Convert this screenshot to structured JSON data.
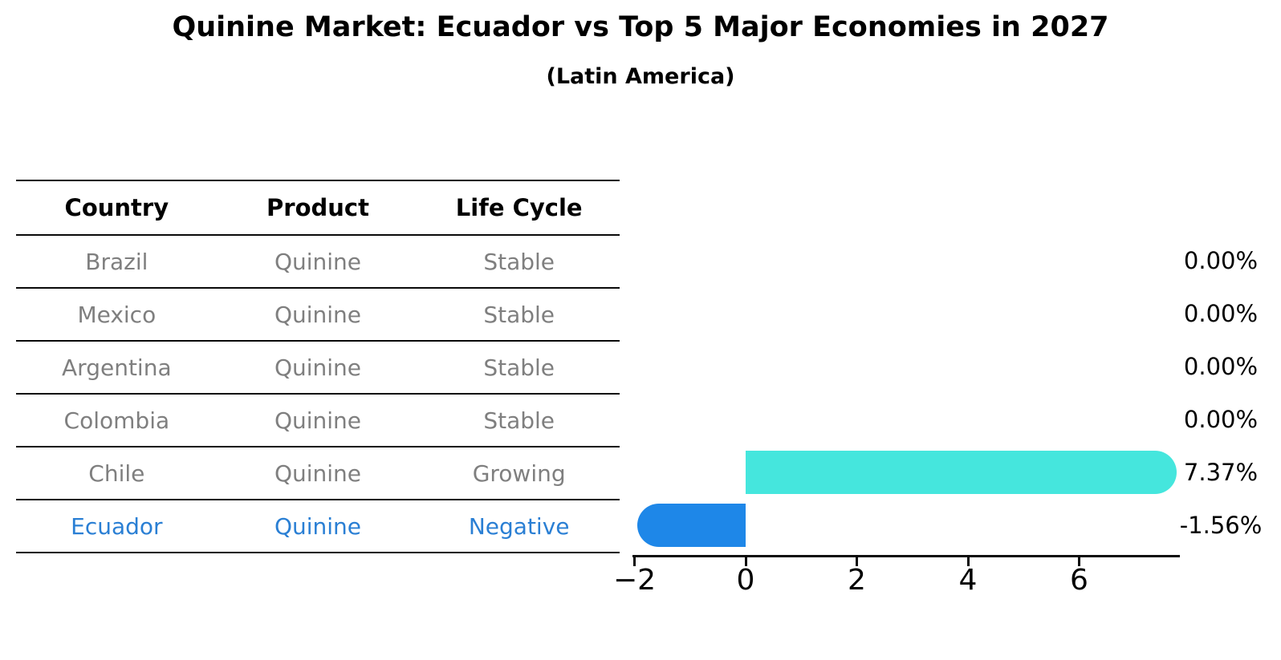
{
  "title": "Quinine Market: Ecuador vs Top 5 Major Economies in 2027",
  "subtitle": "(Latin America)",
  "table": {
    "headers": [
      "Country",
      "Product",
      "Life Cycle"
    ],
    "rows": [
      {
        "country": "Brazil",
        "product": "Quinine",
        "life_cycle": "Stable",
        "highlight": false
      },
      {
        "country": "Mexico",
        "product": "Quinine",
        "life_cycle": "Stable",
        "highlight": false
      },
      {
        "country": "Argentina",
        "product": "Quinine",
        "life_cycle": "Stable",
        "highlight": false
      },
      {
        "country": "Colombia",
        "product": "Quinine",
        "life_cycle": "Stable",
        "highlight": false
      },
      {
        "country": "Chile",
        "product": "Quinine",
        "life_cycle": "Growing",
        "highlight": false
      },
      {
        "country": "Ecuador",
        "product": "Quinine",
        "life_cycle": "Negative",
        "highlight": true
      }
    ]
  },
  "chart_data": {
    "type": "bar",
    "orientation": "horizontal",
    "title": "Quinine Market: Ecuador vs Top 5 Major Economies in 2027",
    "subtitle": "(Latin America)",
    "categories": [
      "Brazil",
      "Mexico",
      "Argentina",
      "Colombia",
      "Chile",
      "Ecuador"
    ],
    "values": [
      0.0,
      0.0,
      0.0,
      0.0,
      7.37,
      -1.56
    ],
    "value_labels": [
      "0.00%",
      "0.00%",
      "0.00%",
      "0.00%",
      "7.37%",
      "-1.56%"
    ],
    "xticks": [
      -2,
      0,
      2,
      4,
      6
    ],
    "xtick_labels": [
      "−2",
      "0",
      "2",
      "4",
      "6"
    ],
    "xlim": [
      -2.04,
      7.8
    ],
    "grid": false,
    "legend": false,
    "positive_bar_color": "#45e6dd",
    "negative_bar_color": "#1e87e8",
    "negative_bar_edge": "dotted",
    "highlight_text_color": "#2a7fd4",
    "table_text_color": "#7f7f7f",
    "axis_color": "#0a0a0a"
  }
}
